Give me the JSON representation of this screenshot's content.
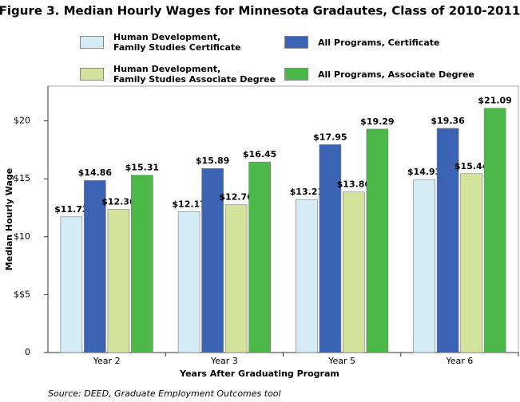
{
  "chart_data": {
    "type": "bar",
    "title": "Figure 3. Median Hourly Wages for Minnesota Gradautes, Class of 2010-2011",
    "categories": [
      "Year 2",
      "Year 3",
      "Year 5",
      "Year 6"
    ],
    "series": [
      {
        "name": "Human Development,\nFamily Studies Certificate",
        "color": "#d5ecf6",
        "values": [
          11.72,
          12.17,
          13.21,
          14.93
        ],
        "value_labels": [
          "$11.72",
          "$12.17",
          "$13.21",
          "$14.93"
        ]
      },
      {
        "name": "All Programs, Certificate",
        "color": "#3b63b3",
        "values": [
          14.86,
          15.89,
          17.95,
          19.36
        ],
        "value_labels": [
          "$14.86",
          "$15.89",
          "$17.95",
          "$19.36"
        ]
      },
      {
        "name": "Human Development,\nFamily Studies Associate Degree",
        "color": "#d3e39b",
        "values": [
          12.36,
          12.76,
          13.86,
          15.44
        ],
        "value_labels": [
          "$12.36",
          "$12.76",
          "$13.86",
          "$15.44"
        ]
      },
      {
        "name": "All Programs, Associate Degree",
        "color": "#4cb849",
        "values": [
          15.31,
          16.45,
          19.29,
          21.09
        ],
        "value_labels": [
          "$15.31",
          "$16.45",
          "$19.29",
          "$21.09"
        ]
      }
    ],
    "xlabel": "Years After Graduating Program",
    "ylabel": "Median Hourly Wage",
    "ylim": [
      0,
      23
    ],
    "yticks": [
      0,
      {
        "value": 5,
        "label": "$$5"
      },
      {
        "value": 10,
        "label": "$10"
      },
      {
        "value": 15,
        "label": "$15"
      },
      {
        "value": 20,
        "label": "$20"
      }
    ],
    "source": "Source: DEED, Graduate Employment Outcomes tool",
    "grid": false
  }
}
